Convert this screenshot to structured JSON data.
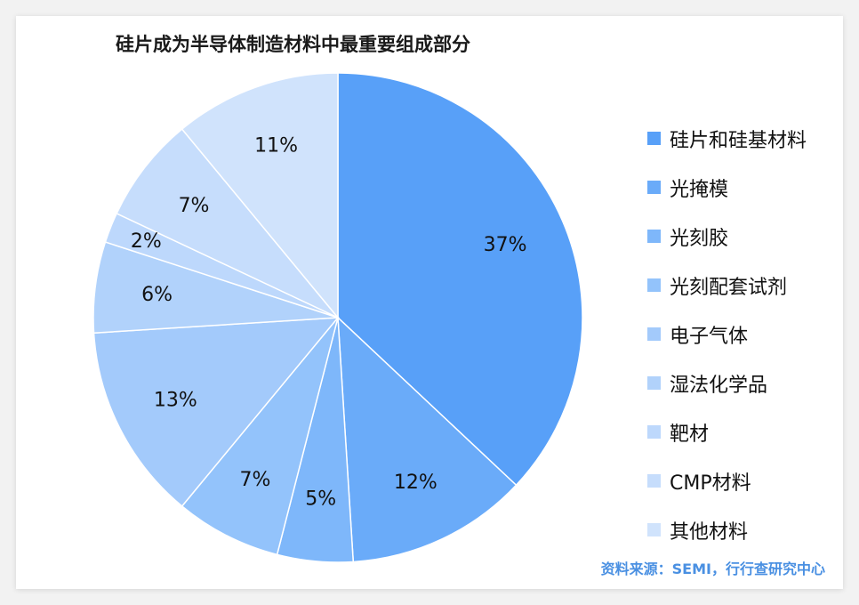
{
  "chart_data": {
    "type": "pie",
    "title": "硅片成为半导体制造材料中最重要组成部分",
    "categories": [
      "硅片和硅基材料",
      "光掩模",
      "光刻胶",
      "光刻配套试剂",
      "电子气体",
      "湿法化学品",
      "靶材",
      "CMP材料",
      "其他材料"
    ],
    "values": [
      37,
      12,
      5,
      7,
      13,
      6,
      2,
      7,
      11
    ],
    "value_labels": [
      "37%",
      "12%",
      "5%",
      "7%",
      "13%",
      "6%",
      "2%",
      "7%",
      "11%"
    ],
    "colors": [
      "#58a0f8",
      "#6aabf9",
      "#7eb7fa",
      "#93c3fb",
      "#a3cafb",
      "#b1d2fb",
      "#bdd8fc",
      "#c6ddfc",
      "#d0e3fc"
    ],
    "legend_position": "right",
    "start_angle": "12 o'clock",
    "direction": "clockwise"
  },
  "source": "资料来源：SEMI，行行查研究中心"
}
